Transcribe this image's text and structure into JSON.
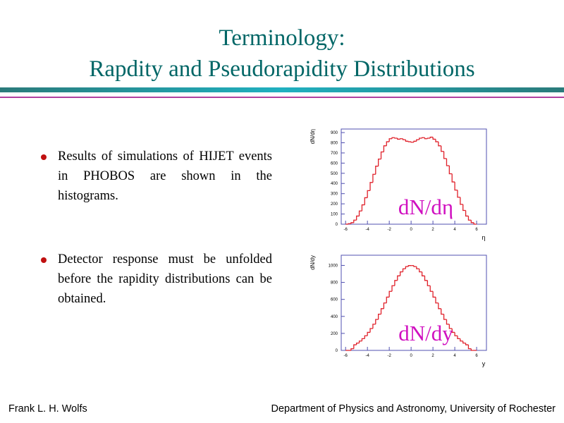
{
  "slide": {
    "title": [
      "Terminology:",
      "Rapdity and Pseudorapidity Distributions"
    ],
    "bullets": [
      "Results of simulations of HIJET events in PHOBOS are shown in the histograms.",
      "Detector response must be unfolded before the rapidity distributions can be obtained."
    ],
    "footer_left": "Frank L. H. Wolfs",
    "footer_right": "Department of Physics and Astronomy, University of Rochester"
  },
  "chart_data": [
    {
      "type": "histogram",
      "ylabel": "dN/dη",
      "xlabel": "η",
      "annotation": "dN/dη",
      "color": "#e0202a",
      "bins": [
        -6,
        -5.75,
        -5.5,
        -5.25,
        -5,
        -4.75,
        -4.5,
        -4.25,
        -4,
        -3.75,
        -3.5,
        -3.25,
        -3,
        -2.75,
        -2.5,
        -2.25,
        -2,
        -1.75,
        -1.5,
        -1.25,
        -1,
        -0.75,
        -0.5,
        -0.25,
        0,
        0.25,
        0.5,
        0.75,
        1,
        1.25,
        1.5,
        1.75,
        2,
        2.25,
        2.5,
        2.75,
        3,
        3.25,
        3.5,
        3.75,
        4,
        4.25,
        4.5,
        4.75,
        5,
        5.25,
        5.5,
        5.75,
        6
      ],
      "counts": [
        0,
        5,
        15,
        40,
        80,
        130,
        190,
        260,
        330,
        410,
        490,
        570,
        640,
        710,
        770,
        810,
        840,
        850,
        845,
        835,
        840,
        830,
        815,
        810,
        805,
        815,
        830,
        845,
        850,
        840,
        845,
        855,
        835,
        810,
        770,
        715,
        645,
        575,
        495,
        415,
        335,
        265,
        195,
        135,
        80,
        40,
        15,
        0
      ],
      "xlim": [
        -6.4,
        6.9
      ],
      "ylim": [
        0,
        935
      ],
      "xticks": [
        -6,
        -4,
        -2,
        0,
        2,
        4,
        6
      ],
      "yticks": [
        0,
        100,
        200,
        300,
        400,
        500,
        600,
        700,
        800,
        900
      ]
    },
    {
      "type": "histogram",
      "ylabel": "dN/dy",
      "xlabel": "y",
      "annotation": "dN/dy",
      "color": "#e0202a",
      "bins": [
        -6,
        -5.75,
        -5.5,
        -5.25,
        -5,
        -4.75,
        -4.5,
        -4.25,
        -4,
        -3.75,
        -3.5,
        -3.25,
        -3,
        -2.75,
        -2.5,
        -2.25,
        -2,
        -1.75,
        -1.5,
        -1.25,
        -1,
        -0.75,
        -0.5,
        -0.25,
        0,
        0.25,
        0.5,
        0.75,
        1,
        1.25,
        1.5,
        1.75,
        2,
        2.25,
        2.5,
        2.75,
        3,
        3.25,
        3.5,
        3.75,
        4,
        4.25,
        4.5,
        4.75,
        5,
        5.25,
        5.5,
        5.75,
        6
      ],
      "counts": [
        0,
        0,
        20,
        66,
        86,
        110,
        138,
        172,
        212,
        257,
        308,
        364,
        426,
        491,
        558,
        627,
        695,
        761,
        823,
        877,
        924,
        960,
        986,
        998,
        998,
        986,
        960,
        924,
        877,
        823,
        761,
        695,
        627,
        558,
        491,
        426,
        364,
        308,
        257,
        212,
        172,
        138,
        110,
        86,
        66,
        20,
        0,
        0
      ],
      "xlim": [
        -6.4,
        6.9
      ],
      "ylim": [
        0,
        1120
      ],
      "xticks": [
        -6,
        -4,
        -2,
        0,
        2,
        4,
        6
      ],
      "yticks": [
        0,
        200,
        400,
        600,
        800,
        1000
      ]
    }
  ]
}
